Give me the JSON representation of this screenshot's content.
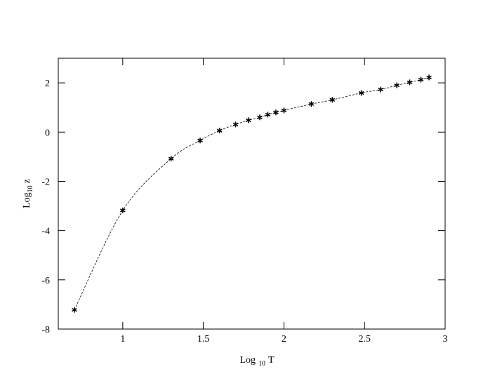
{
  "chart_data": {
    "type": "scatter",
    "xlabel": [
      "Log",
      "10",
      "T"
    ],
    "ylabel": [
      "Log",
      "10",
      "z"
    ],
    "x": [
      0.7,
      1.0,
      1.3,
      1.48,
      1.6,
      1.7,
      1.78,
      1.85,
      1.9,
      1.95,
      2.0,
      2.17,
      2.3,
      2.48,
      2.6,
      2.7,
      2.78,
      2.85,
      2.9
    ],
    "series": [
      {
        "color": "#000000",
        "values": [
          -7.22,
          -3.18,
          -1.08,
          -0.34,
          0.06,
          0.31,
          0.48,
          0.6,
          0.71,
          0.8,
          0.88,
          1.14,
          1.31,
          1.59,
          1.73,
          1.9,
          2.02,
          2.13,
          2.22
        ]
      }
    ],
    "xlim": [
      0.6,
      3
    ],
    "ylim": [
      -8,
      3
    ],
    "xticks": [
      1,
      1.5,
      2,
      2.5,
      3
    ],
    "yticks": [
      2,
      0,
      -2,
      -4,
      -6,
      -8
    ],
    "line_style": "dashed",
    "grid": false
  }
}
